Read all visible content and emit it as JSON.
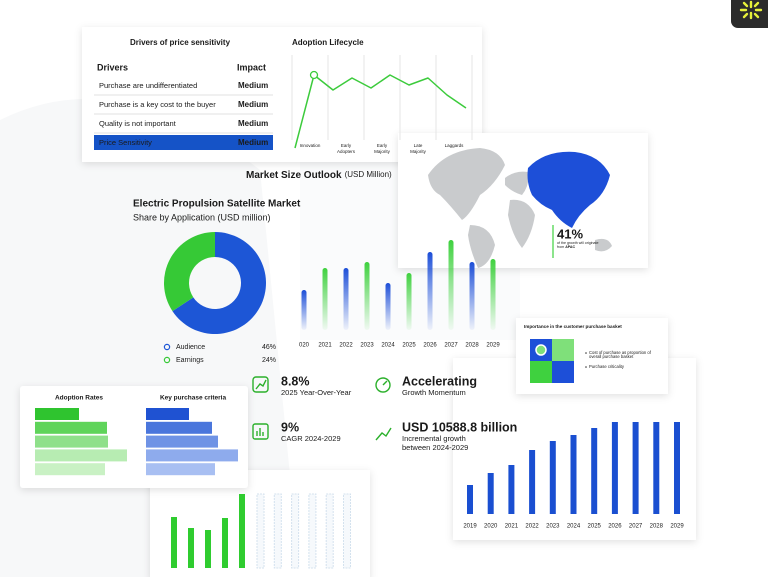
{
  "price_table": {
    "title": "Drivers of price sensitivity",
    "headers": [
      "Drivers",
      "Impact"
    ],
    "rows": [
      {
        "driver": "Purchase are undifferentiated",
        "impact": "Medium"
      },
      {
        "driver": "Purchase is a key cost to the buyer",
        "impact": "Medium"
      },
      {
        "driver": "Quality is not important",
        "impact": "Medium"
      },
      {
        "driver": "Price Sensitivity",
        "impact": "Medium"
      }
    ],
    "selected_row": 3,
    "selected_color": "#1553c7"
  },
  "lifecycle": {
    "title": "Adoption Lifecycle",
    "stages": [
      [
        "Innovation"
      ],
      [
        "Early",
        "Adopters"
      ],
      [
        "Early",
        "Majority"
      ],
      [
        "Late",
        "Majority"
      ],
      [
        "Laggards"
      ]
    ],
    "curve": [
      2,
      75,
      60,
      72,
      62,
      75,
      65,
      72,
      55,
      42
    ],
    "color": "#3ccb3c"
  },
  "market_outlook": {
    "title": "Market Size Outlook",
    "unit": "(USD Million)",
    "categories": [
      "020",
      "2021",
      "2022",
      "2023",
      "2024",
      "2025",
      "2026",
      "2027",
      "2028",
      "2029"
    ],
    "values": [
      40,
      62,
      62,
      68,
      47,
      57,
      78,
      90,
      68,
      71
    ],
    "colors": [
      "#1d4fd8",
      "#3fd13f"
    ]
  },
  "donut": {
    "title": "Electric Propulsion Satellite Market",
    "subtitle": "Share by Application (USD million)",
    "segments": [
      {
        "name": "Audience",
        "value": 46,
        "label": "46%",
        "color": "#1d56d6"
      },
      {
        "name": "Earnings",
        "value": 24,
        "label": "24%",
        "color": "#36c936"
      }
    ]
  },
  "map": {
    "stat": "41%",
    "lines": [
      "of the growth will originate",
      "from"
    ],
    "region": "APAC"
  },
  "basket": {
    "title": "Importance in the customer purchase basket",
    "bullets": [
      "Cost of purchase as proportion of",
      "overall purchase basket",
      "Purchase criticality"
    ]
  },
  "kpis": [
    {
      "value": "8.8%",
      "lines": [
        "2025 Year-Over-Year"
      ]
    },
    {
      "value": "9%",
      "lines": [
        "CAGR 2024-2029"
      ]
    },
    {
      "value": "Accelerating",
      "lines": [
        "Growth Momentum"
      ]
    },
    {
      "value": "USD 10588.8 billion",
      "lines": [
        "Incremental growth",
        "between 2024-2029"
      ]
    }
  ],
  "adoption_rates": {
    "title": "Adoption Rates",
    "values": [
      44,
      72,
      73,
      92,
      70
    ],
    "colors": [
      "#2fc42f",
      "#5fd45a",
      "#8fe08a",
      "#b7ecb2",
      "#c9f1c4"
    ]
  },
  "purchase_criteria": {
    "title": "Key purchase criteria",
    "values": [
      43,
      66,
      72,
      92,
      69
    ],
    "colors": [
      "#1f52d2",
      "#4a76dc",
      "#6f93e5",
      "#8eabed",
      "#a8bff2"
    ]
  },
  "growth_chart": {
    "categories": [
      "2019",
      "2020",
      "2021",
      "2022",
      "2023",
      "2024",
      "2025",
      "2026",
      "2027",
      "2028",
      "2029"
    ],
    "values": [
      29,
      41,
      49,
      64,
      73,
      79,
      86,
      92,
      92,
      92,
      92
    ],
    "color": "#1a4fd1"
  },
  "bottom_chart": {
    "actual": [
      51,
      40,
      38,
      50,
      74
    ],
    "forecast": [
      74,
      74,
      74,
      74,
      74,
      74
    ],
    "color": "#2fcc2f",
    "forecast_color": "#d4e2ee"
  }
}
